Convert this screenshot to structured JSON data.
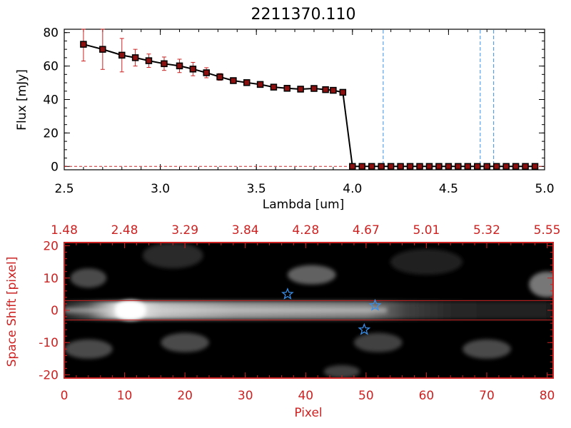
{
  "title": "2211370.110",
  "colors": {
    "axis_black": "#000000",
    "axis_red": "#cc2222",
    "errorbar": "#cc2222",
    "marker_fill": "#8b1010",
    "marker_edge": "#000000",
    "vline": "#3a8ee6",
    "star": "#3a8ee6",
    "band_line": "#cc2222"
  },
  "chart_data": [
    {
      "type": "line",
      "xlabel": "Lambda [um]",
      "ylabel": "Flux [mJy]",
      "xlim": [
        2.5,
        5.0
      ],
      "ylim": [
        -2,
        82
      ],
      "x_ticks": [
        "2.5",
        "3.0",
        "3.5",
        "4.0",
        "4.5",
        "5.0"
      ],
      "x_tick_values": [
        2.5,
        3.0,
        3.5,
        4.0,
        4.5,
        5.0
      ],
      "y_ticks": [
        "0",
        "20",
        "40",
        "60",
        "80"
      ],
      "y_tick_values": [
        0,
        20,
        40,
        60,
        80
      ],
      "series": [
        {
          "x": [
            2.6,
            2.7,
            2.8,
            2.87,
            2.94,
            3.02,
            3.1,
            3.17,
            3.24,
            3.31,
            3.38,
            3.45,
            3.52,
            3.59,
            3.66,
            3.73,
            3.8,
            3.86,
            3.9,
            3.95,
            4.0,
            4.05,
            4.1,
            4.15,
            4.2,
            4.25,
            4.3,
            4.35,
            4.4,
            4.45,
            4.5,
            4.55,
            4.6,
            4.65,
            4.7,
            4.75,
            4.8,
            4.85,
            4.9,
            4.95
          ],
          "y": [
            73,
            70,
            66.5,
            65,
            63.2,
            61.4,
            60.1,
            58.2,
            56.0,
            53.5,
            51.3,
            50.1,
            49.0,
            47.4,
            46.7,
            46.2,
            46.6,
            45.9,
            45.5,
            44.3,
            0,
            0,
            0,
            0,
            0,
            0,
            0,
            0,
            0,
            0,
            0,
            0,
            0,
            0,
            0,
            0,
            0,
            0,
            0,
            0
          ],
          "yerr": [
            10,
            12,
            10,
            5,
            4,
            4,
            4,
            4,
            3,
            2,
            1.5,
            1,
            1,
            1,
            1,
            1,
            1,
            1,
            1,
            1,
            0,
            0,
            0,
            0,
            0,
            0,
            0,
            0,
            0,
            0,
            0,
            0,
            0,
            0,
            0,
            0,
            0,
            0,
            0,
            0
          ]
        }
      ],
      "vlines": [
        4.16,
        4.665,
        4.735
      ],
      "zero_line": true
    },
    {
      "type": "heatmap",
      "xlabel": "Pixel",
      "ylabel": "Space Shift [pixel]",
      "xlim": [
        0,
        81
      ],
      "ylim": [
        -21,
        21
      ],
      "x_ticks": [
        "0",
        "10",
        "20",
        "30",
        "40",
        "50",
        "60",
        "70",
        "80"
      ],
      "x_tick_values": [
        0,
        10,
        20,
        30,
        40,
        50,
        60,
        70,
        80
      ],
      "y_ticks": [
        "-20",
        "-10",
        "0",
        "10",
        "20"
      ],
      "y_tick_values": [
        -20,
        -10,
        0,
        10,
        20
      ],
      "top_axis_ticks": [
        "1.48",
        "2.48",
        "3.29",
        "3.84",
        "4.28",
        "4.67",
        "5.01",
        "5.32",
        "5.55"
      ],
      "band": [
        -3,
        3
      ],
      "stars": [
        [
          37,
          5
        ],
        [
          51.5,
          1.5
        ],
        [
          49.7,
          -6
        ]
      ],
      "spectrum_trace": {
        "peak_pixel": 11,
        "peak_intensity": 1.0
      },
      "blobs": [
        [
          4,
          10,
          0.35,
          3,
          3
        ],
        [
          41,
          11,
          0.45,
          4,
          3
        ],
        [
          20,
          -10,
          0.35,
          4,
          3
        ],
        [
          4,
          -12,
          0.35,
          4,
          3
        ],
        [
          46,
          -19,
          0.3,
          3,
          2
        ],
        [
          70,
          -12,
          0.35,
          4,
          3
        ],
        [
          80,
          8,
          0.55,
          3,
          4
        ],
        [
          52,
          -10,
          0.3,
          4,
          3
        ],
        [
          18,
          17,
          0.2,
          5,
          4
        ],
        [
          60,
          15,
          0.15,
          6,
          4
        ]
      ]
    }
  ]
}
